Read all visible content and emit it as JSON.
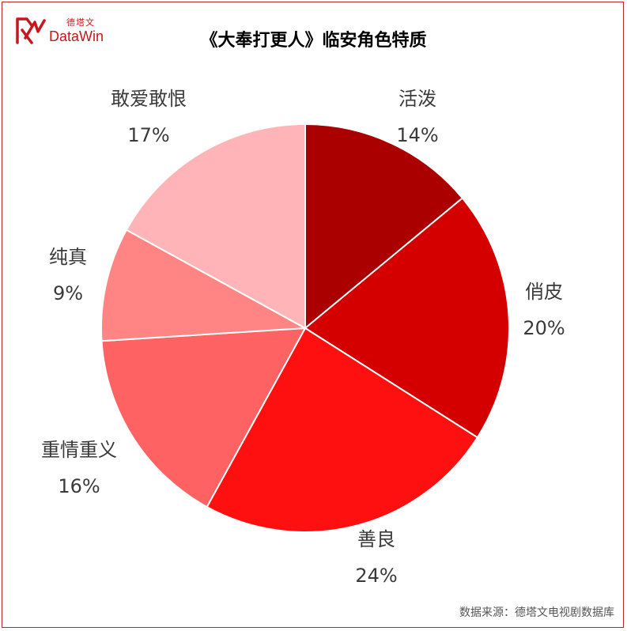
{
  "logo": {
    "cn_text": "德塔文",
    "en_text": "DataWin"
  },
  "title": "《大奉打更人》临安角色特质",
  "source": "数据来源：德塔文电视剧数据库",
  "chart_data": {
    "type": "pie",
    "title": "《大奉打更人》临安角色特质",
    "unit": "%",
    "slices": [
      {
        "name": "活泼",
        "value": 14,
        "value_label": "14%",
        "color": "#aa0000"
      },
      {
        "name": "俏皮",
        "value": 20,
        "value_label": "20%",
        "color": "#d40000"
      },
      {
        "name": "善良",
        "value": 24,
        "value_label": "24%",
        "color": "#ff1010"
      },
      {
        "name": "重情重义",
        "value": 16,
        "value_label": "16%",
        "color": "#ff6262"
      },
      {
        "name": "纯真",
        "value": 9,
        "value_label": "9%",
        "color": "#ff8585"
      },
      {
        "name": "敢爱敢恨",
        "value": 17,
        "value_label": "17%",
        "color": "#ffb5b8"
      }
    ]
  }
}
